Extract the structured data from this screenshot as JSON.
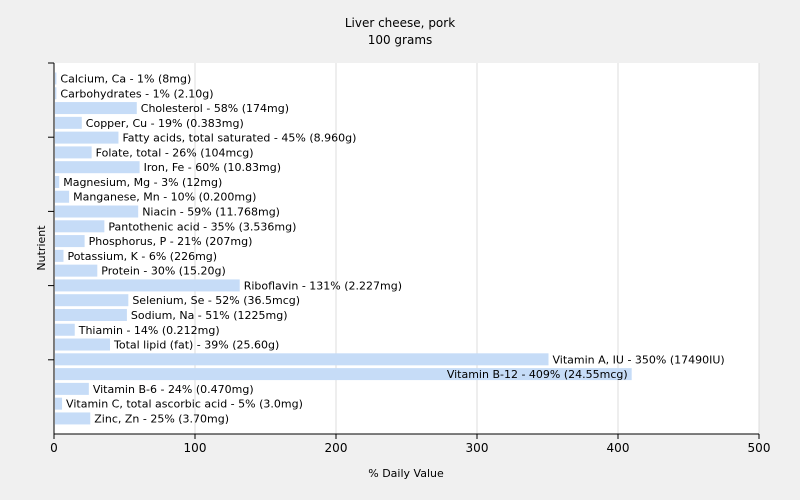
{
  "chart_data": {
    "type": "bar",
    "orientation": "horizontal",
    "title": "Liver cheese, pork",
    "subtitle": "100 grams",
    "xlabel": "% Daily Value",
    "ylabel": "Nutrient",
    "xlim": [
      0,
      500
    ],
    "xticks": [
      "0",
      "100",
      "200",
      "300",
      "400",
      "500"
    ],
    "grid": true,
    "bar_color": "#c6dcf7",
    "bars": [
      {
        "label": "Calcium, Ca - 1% (8mg)",
        "value": 1
      },
      {
        "label": "Carbohydrates - 1% (2.10g)",
        "value": 1
      },
      {
        "label": "Cholesterol - 58% (174mg)",
        "value": 58
      },
      {
        "label": "Copper, Cu - 19% (0.383mg)",
        "value": 19
      },
      {
        "label": "Fatty acids, total saturated - 45% (8.960g)",
        "value": 45
      },
      {
        "label": "Folate, total - 26% (104mcg)",
        "value": 26
      },
      {
        "label": "Iron, Fe - 60% (10.83mg)",
        "value": 60
      },
      {
        "label": "Magnesium, Mg - 3% (12mg)",
        "value": 3
      },
      {
        "label": "Manganese, Mn - 10% (0.200mg)",
        "value": 10
      },
      {
        "label": "Niacin - 59% (11.768mg)",
        "value": 59
      },
      {
        "label": "Pantothenic acid - 35% (3.536mg)",
        "value": 35
      },
      {
        "label": "Phosphorus, P - 21% (207mg)",
        "value": 21
      },
      {
        "label": "Potassium, K - 6% (226mg)",
        "value": 6
      },
      {
        "label": "Protein - 30% (15.20g)",
        "value": 30
      },
      {
        "label": "Riboflavin - 131% (2.227mg)",
        "value": 131
      },
      {
        "label": "Selenium, Se - 52% (36.5mcg)",
        "value": 52
      },
      {
        "label": "Sodium, Na - 51% (1225mg)",
        "value": 51
      },
      {
        "label": "Thiamin - 14% (0.212mg)",
        "value": 14
      },
      {
        "label": "Total lipid (fat) - 39% (25.60g)",
        "value": 39
      },
      {
        "label": "Vitamin A, IU - 350% (17490IU)",
        "value": 350
      },
      {
        "label": "Vitamin B-12 - 409% (24.55mcg)",
        "value": 409
      },
      {
        "label": "Vitamin B-6 - 24% (0.470mg)",
        "value": 24
      },
      {
        "label": "Vitamin C, total ascorbic acid - 5% (3.0mg)",
        "value": 5
      },
      {
        "label": "Zinc, Zn - 25% (3.70mg)",
        "value": 25
      }
    ]
  }
}
